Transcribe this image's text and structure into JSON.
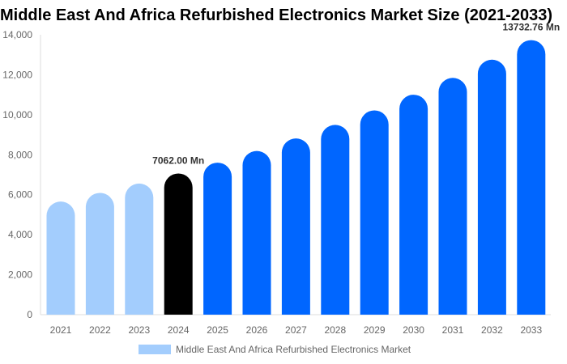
{
  "chart_data": {
    "type": "bar",
    "title": "Middle East And Africa Refurbished Electronics Market Size (2021-2033)",
    "categories": [
      "2021",
      "2022",
      "2023",
      "2024",
      "2025",
      "2026",
      "2027",
      "2028",
      "2029",
      "2030",
      "2031",
      "2032",
      "2033"
    ],
    "series": [
      {
        "name": "Middle East And Africa Refurbished Electronics Market",
        "values": [
          5658,
          6092,
          6559,
          7062.0,
          7604,
          8187,
          8815,
          9491,
          10219,
          11003,
          11847,
          12756,
          13732.76
        ]
      }
    ],
    "data_labels": [
      {
        "category": "2024",
        "text": "7062.00 Mn"
      },
      {
        "category": "2033",
        "text": "13732.76 Mn"
      }
    ],
    "ylim": [
      0,
      14000
    ],
    "yticks": [
      0,
      2000,
      4000,
      6000,
      8000,
      10000,
      12000,
      14000
    ],
    "ytick_labels": [
      "0",
      "2,000",
      "4,000",
      "6,000",
      "8,000",
      "10,000",
      "12,000",
      "14,000"
    ],
    "xlabel": "",
    "ylabel": "",
    "grid": false,
    "legend": "bottom",
    "colors": {
      "historic": "#a3cdfd",
      "current": "#000000",
      "forecast": "#0066ff"
    }
  }
}
